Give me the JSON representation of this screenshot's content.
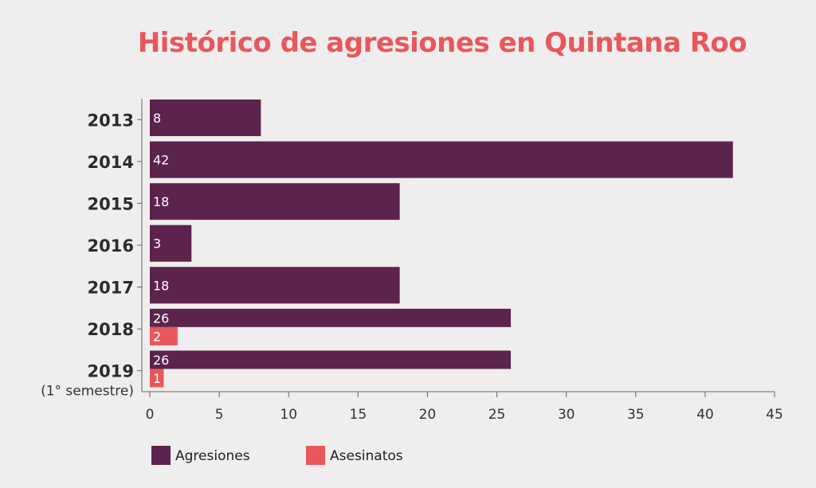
{
  "chart_data": {
    "type": "bar",
    "orientation": "horizontal",
    "title": "Histórico de agresiones en Quintana Roo",
    "categories": [
      "2013",
      "2014",
      "2015",
      "2016",
      "2017",
      "2018",
      "2019"
    ],
    "category_sublabels": {
      "2019": "(1° semestre)"
    },
    "series": [
      {
        "name": "Agresiones",
        "color": "#5c234d",
        "values": [
          8,
          42,
          18,
          3,
          18,
          26,
          26
        ]
      },
      {
        "name": "Asesinatos",
        "color": "#e8575c",
        "values": [
          null,
          null,
          null,
          null,
          null,
          2,
          1
        ]
      }
    ],
    "xlim": [
      0,
      45
    ],
    "xticks": [
      0,
      5,
      10,
      15,
      20,
      25,
      30,
      35,
      40,
      45
    ],
    "legend_position": "bottom-left",
    "grid": false
  },
  "colors": {
    "background": "#efeded",
    "axis": "#666666"
  }
}
